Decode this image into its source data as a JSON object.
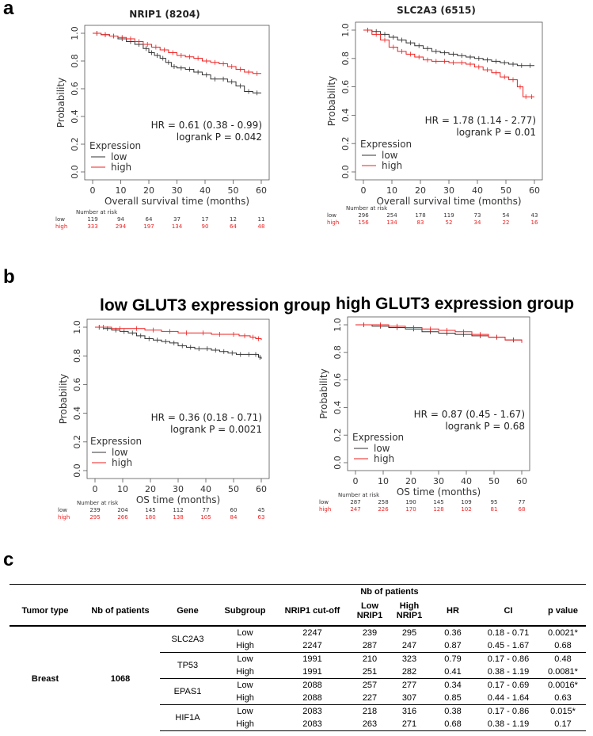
{
  "panels": {
    "a": "a",
    "b": "b",
    "c": "c"
  },
  "group_titles": {
    "low": "low GLUT3 expression group",
    "high": "high GLUT3 expression group"
  },
  "chart_data": [
    {
      "type": "line",
      "title": "NRIP1 (8204)",
      "xlabel": "Overall survival time (months)",
      "ylabel": "Probability",
      "xlim": [
        0,
        60
      ],
      "ylim": [
        0,
        1
      ],
      "xticks": [
        0,
        10,
        20,
        30,
        40,
        50,
        60
      ],
      "yticks": [
        0.0,
        0.2,
        0.4,
        0.6,
        0.8,
        1.0
      ],
      "legend_title": "Expression",
      "hr_text": "HR = 0.61 (0.38 - 0.99)",
      "logrank_text": "logrank P = 0.042",
      "series": [
        {
          "name": "low",
          "color": "#333333",
          "x": [
            0,
            3,
            6,
            9,
            12,
            15,
            18,
            20,
            22,
            24,
            26,
            28,
            30,
            33,
            36,
            39,
            42,
            45,
            48,
            51,
            54,
            57,
            60
          ],
          "values": [
            1.0,
            0.99,
            0.98,
            0.96,
            0.94,
            0.92,
            0.89,
            0.86,
            0.84,
            0.82,
            0.79,
            0.76,
            0.75,
            0.74,
            0.72,
            0.7,
            0.67,
            0.67,
            0.65,
            0.62,
            0.58,
            0.57,
            0.57
          ]
        },
        {
          "name": "high",
          "color": "#ee2222",
          "x": [
            0,
            3,
            6,
            9,
            12,
            15,
            18,
            21,
            24,
            27,
            30,
            33,
            36,
            39,
            42,
            45,
            48,
            51,
            54,
            57,
            60
          ],
          "values": [
            1.0,
            0.99,
            0.98,
            0.97,
            0.96,
            0.94,
            0.92,
            0.9,
            0.88,
            0.86,
            0.84,
            0.83,
            0.82,
            0.8,
            0.79,
            0.78,
            0.76,
            0.74,
            0.72,
            0.71,
            0.71
          ]
        }
      ],
      "risk_header": "Number at risk",
      "risk": [
        {
          "label": "low",
          "color": "#333333",
          "values": [
            "119",
            "94",
            "64",
            "37",
            "17",
            "12",
            "11"
          ]
        },
        {
          "label": "high",
          "color": "#ee2222",
          "values": [
            "333",
            "294",
            "197",
            "134",
            "90",
            "64",
            "48"
          ]
        }
      ]
    },
    {
      "type": "line",
      "title": "SLC2A3 (6515)",
      "xlabel": "Overall survival time (months)",
      "ylabel": "Probability",
      "xlim": [
        0,
        60
      ],
      "ylim": [
        0,
        1
      ],
      "xticks": [
        0,
        10,
        20,
        30,
        40,
        50,
        60
      ],
      "yticks": [
        0.0,
        0.2,
        0.4,
        0.6,
        0.8,
        1.0
      ],
      "legend_title": "Expression",
      "hr_text": "HR = 1.78 (1.14 - 2.77)",
      "logrank_text": "logrank P = 0.01",
      "series": [
        {
          "name": "low",
          "color": "#333333",
          "x": [
            0,
            3,
            6,
            9,
            12,
            15,
            18,
            21,
            24,
            27,
            30,
            33,
            36,
            39,
            42,
            45,
            48,
            51,
            54,
            57,
            60
          ],
          "values": [
            1.0,
            0.99,
            0.97,
            0.95,
            0.93,
            0.91,
            0.89,
            0.87,
            0.85,
            0.84,
            0.83,
            0.82,
            0.81,
            0.8,
            0.79,
            0.78,
            0.77,
            0.76,
            0.75,
            0.75,
            0.75
          ]
        },
        {
          "name": "high",
          "color": "#ee2222",
          "x": [
            0,
            3,
            6,
            9,
            12,
            15,
            18,
            21,
            24,
            27,
            30,
            33,
            36,
            39,
            42,
            45,
            48,
            51,
            54,
            56,
            58,
            60
          ],
          "values": [
            1.0,
            0.97,
            0.93,
            0.88,
            0.85,
            0.83,
            0.81,
            0.79,
            0.78,
            0.78,
            0.77,
            0.77,
            0.76,
            0.74,
            0.72,
            0.7,
            0.67,
            0.65,
            0.6,
            0.53,
            0.53,
            0.53
          ]
        }
      ],
      "risk_header": "Number at risk",
      "risk": [
        {
          "label": "low",
          "color": "#333333",
          "values": [
            "296",
            "254",
            "178",
            "119",
            "73",
            "54",
            "43"
          ]
        },
        {
          "label": "high",
          "color": "#ee2222",
          "values": [
            "156",
            "134",
            "83",
            "52",
            "34",
            "22",
            "16"
          ]
        }
      ]
    },
    {
      "type": "line",
      "title": "",
      "xlabel": "OS time (months)",
      "ylabel": "Probability",
      "xlim": [
        0,
        60
      ],
      "ylim": [
        0,
        1
      ],
      "xticks": [
        0,
        10,
        20,
        30,
        40,
        50,
        60
      ],
      "yticks": [
        0.0,
        0.2,
        0.4,
        0.6,
        0.8,
        1.0
      ],
      "legend_title": "Expression",
      "hr_text": "HR = 0.36 (0.18 - 0.71)",
      "logrank_text": "logrank P = 0.0021",
      "series": [
        {
          "name": "low",
          "color": "#333333",
          "x": [
            0,
            3,
            6,
            9,
            12,
            15,
            18,
            21,
            24,
            27,
            30,
            33,
            36,
            39,
            42,
            45,
            48,
            51,
            54,
            57,
            59,
            60
          ],
          "values": [
            1.0,
            0.99,
            0.98,
            0.97,
            0.96,
            0.94,
            0.92,
            0.91,
            0.9,
            0.89,
            0.87,
            0.86,
            0.85,
            0.85,
            0.84,
            0.83,
            0.82,
            0.81,
            0.81,
            0.81,
            0.79,
            0.78
          ]
        },
        {
          "name": "high",
          "color": "#ee2222",
          "x": [
            0,
            6,
            12,
            18,
            24,
            30,
            36,
            42,
            48,
            52,
            56,
            58,
            60
          ],
          "values": [
            1.0,
            0.99,
            0.99,
            0.98,
            0.97,
            0.96,
            0.96,
            0.95,
            0.95,
            0.94,
            0.93,
            0.92,
            0.91
          ]
        }
      ],
      "risk_header": "Number at risk",
      "risk": [
        {
          "label": "low",
          "color": "#333333",
          "values": [
            "239",
            "204",
            "145",
            "112",
            "77",
            "60",
            "45"
          ]
        },
        {
          "label": "high",
          "color": "#ee2222",
          "values": [
            "295",
            "266",
            "180",
            "138",
            "105",
            "84",
            "63"
          ]
        }
      ]
    },
    {
      "type": "line",
      "title": "",
      "xlabel": "OS time (months)",
      "ylabel": "Probability",
      "xlim": [
        0,
        60
      ],
      "ylim": [
        0,
        1
      ],
      "xticks": [
        0,
        10,
        20,
        30,
        40,
        50,
        60
      ],
      "yticks": [
        0.0,
        0.2,
        0.4,
        0.6,
        0.8,
        1.0
      ],
      "legend_title": "Expression",
      "hr_text": "HR = 0.87 (0.45 - 1.67)",
      "logrank_text": "logrank P = 0.68",
      "series": [
        {
          "name": "low",
          "color": "#333333",
          "x": [
            0,
            6,
            12,
            18,
            24,
            30,
            36,
            42,
            48,
            54,
            60
          ],
          "values": [
            1.0,
            0.99,
            0.98,
            0.97,
            0.95,
            0.94,
            0.93,
            0.92,
            0.91,
            0.89,
            0.87
          ]
        },
        {
          "name": "high",
          "color": "#ee2222",
          "x": [
            0,
            6,
            12,
            18,
            24,
            30,
            36,
            42,
            48,
            54,
            60
          ],
          "values": [
            1.0,
            1.0,
            0.99,
            0.98,
            0.97,
            0.96,
            0.95,
            0.93,
            0.91,
            0.89,
            0.87
          ]
        }
      ],
      "risk_header": "Number at risk",
      "risk": [
        {
          "label": "low",
          "color": "#333333",
          "values": [
            "287",
            "258",
            "190",
            "145",
            "109",
            "95",
            "77"
          ]
        },
        {
          "label": "high",
          "color": "#ee2222",
          "values": [
            "247",
            "226",
            "170",
            "128",
            "102",
            "81",
            "68"
          ]
        }
      ]
    }
  ],
  "table": {
    "header_top": "Nb of patients",
    "columns": [
      "Tumor type",
      "Nb of patients",
      "Gene",
      "Subgroup",
      "NRIP1 cut-off",
      "Low NRIP1",
      "High NRIP1",
      "HR",
      "CI",
      "p value"
    ],
    "tumor_type": "Breast",
    "n_patients": "1068",
    "rows": [
      {
        "gene": "SLC2A3",
        "subgroup": "Low",
        "cutoff": "2247",
        "low": "239",
        "high": "295",
        "hr": "0.36",
        "ci": "0.18 - 0.71",
        "p": "0.0021*"
      },
      {
        "gene": "",
        "subgroup": "High",
        "cutoff": "2247",
        "low": "287",
        "high": "247",
        "hr": "0.87",
        "ci": "0.45 - 1.67",
        "p": "0.68"
      },
      {
        "gene": "TP53",
        "subgroup": "Low",
        "cutoff": "1991",
        "low": "210",
        "high": "323",
        "hr": "0.79",
        "ci": "0.17 - 0.86",
        "p": "0.48"
      },
      {
        "gene": "",
        "subgroup": "High",
        "cutoff": "1991",
        "low": "251",
        "high": "282",
        "hr": "0.41",
        "ci": "0.38 - 1.19",
        "p": "0.0081*"
      },
      {
        "gene": "EPAS1",
        "subgroup": "Low",
        "cutoff": "2088",
        "low": "257",
        "high": "277",
        "hr": "0.34",
        "ci": "0.17 - 0.69",
        "p": "0.0016*"
      },
      {
        "gene": "",
        "subgroup": "High",
        "cutoff": "2088",
        "low": "227",
        "high": "307",
        "hr": "0.85",
        "ci": "0.44 - 1.64",
        "p": "0.63"
      },
      {
        "gene": "HIF1A",
        "subgroup": "Low",
        "cutoff": "2083",
        "low": "218",
        "high": "316",
        "hr": "0.38",
        "ci": "0.17 - 0.86",
        "p": "0.015*"
      },
      {
        "gene": "",
        "subgroup": "High",
        "cutoff": "2083",
        "low": "263",
        "high": "271",
        "hr": "0.68",
        "ci": "0.38 - 1.19",
        "p": "0.17"
      }
    ]
  }
}
